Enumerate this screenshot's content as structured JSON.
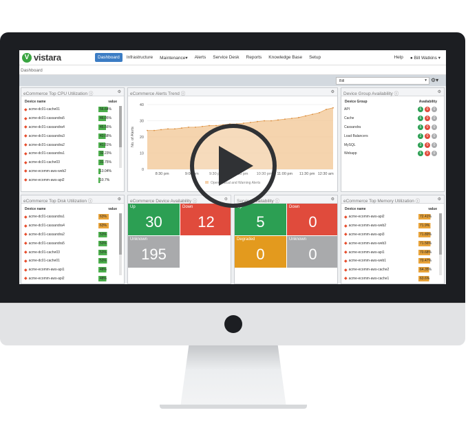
{
  "app": {
    "logo": "vistara",
    "logo_mark": "V"
  },
  "nav": {
    "items": [
      "Dashboard",
      "Infrastructure",
      "Maintenance",
      "Alerts",
      "Service Desk",
      "Reports",
      "Knowledge Base",
      "Setup"
    ],
    "maintenance_caret": "▾",
    "help": "Help",
    "user": "Bill Watkins"
  },
  "breadcrumb": "Dashboard",
  "toolbar": {
    "selected": "Bill"
  },
  "cpu": {
    "title": "eCommerce Top CPU Utilization",
    "col_device": "Device name",
    "col_value": "value",
    "rows": [
      {
        "name": "acme-dc01-cache01",
        "value": "56.64%",
        "pct": 56.64
      },
      {
        "name": "acme-dc01-cassandra5",
        "value": "46.05%",
        "pct": 46.05
      },
      {
        "name": "acme-dc01-cassandra4",
        "value": "45.56%",
        "pct": 45.56
      },
      {
        "name": "acme-dc01-cassandra3",
        "value": "43.68%",
        "pct": 43.68
      },
      {
        "name": "acme-dc01-cassandra2",
        "value": "41.81%",
        "pct": 41.81
      },
      {
        "name": "acme-dc01-cassandra1",
        "value": "32.23%",
        "pct": 32.23
      },
      {
        "name": "acme-dc01-cache03",
        "value": "31.75%",
        "pct": 31.75
      },
      {
        "name": "acme-ecomm-aws-web2",
        "value": "13.04%",
        "pct": 13.04
      },
      {
        "name": "acme-ecomm-aws-api2",
        "value": "10.7%",
        "pct": 10.7
      }
    ]
  },
  "trend": {
    "title": "eCommerce Alerts Trend",
    "chart_data": {
      "type": "area",
      "ylabel": "No. of Alerts",
      "ylim": [
        0,
        40
      ],
      "yticks": [
        "40",
        "30",
        "20",
        "10",
        "0"
      ],
      "xticks": [
        "8:30 pm",
        "9:00 pm",
        "9:30 pm",
        "10:00 pm",
        "10:30 pm",
        "11:00 pm",
        "11:30 pm",
        "12:30 am"
      ],
      "legend": "Open Critical and Warning Alerts",
      "values": [
        24,
        24,
        24.5,
        25,
        25,
        25.5,
        26,
        26,
        26.5,
        27,
        27,
        27.5,
        28,
        28,
        28.5,
        29,
        29.5,
        30,
        30,
        30.5,
        31,
        31.5,
        32,
        33,
        34,
        35,
        37,
        38
      ]
    }
  },
  "group": {
    "title": "Device Group Availability",
    "col_group": "Device Group",
    "col_avail": "Availability",
    "rows": [
      {
        "name": "API",
        "up": "6",
        "down": "0",
        "unk": "0"
      },
      {
        "name": "Cache",
        "up": "6",
        "down": "0",
        "unk": "0"
      },
      {
        "name": "Cassandra",
        "up": "5",
        "down": "0",
        "unk": "0"
      },
      {
        "name": "Load Balancers",
        "up": "2",
        "down": "0",
        "unk": "0"
      },
      {
        "name": "MySQL",
        "up": "3",
        "down": "0",
        "unk": "0"
      },
      {
        "name": "Webapp",
        "up": "6",
        "down": "0",
        "unk": "0"
      }
    ]
  },
  "disk": {
    "title": "eCommerce Top Disk Utilization",
    "col_device": "Device name",
    "col_value": "value",
    "rows": [
      {
        "name": "acme-dc01-cassandra1",
        "value": "63%",
        "pct": 63,
        "color": "#e8a33a"
      },
      {
        "name": "acme-dc01-cassandra4",
        "value": "63%",
        "pct": 63,
        "color": "#e8a33a"
      },
      {
        "name": "acme-dc01-cassandra2",
        "value": "53%",
        "pct": 53,
        "color": "#4cae4c"
      },
      {
        "name": "acme-dc01-cassandra5",
        "value": "53%",
        "pct": 53,
        "color": "#4cae4c"
      },
      {
        "name": "acme-dc01-cache03",
        "value": "53%",
        "pct": 53,
        "color": "#4cae4c"
      },
      {
        "name": "acme-dc01-cache01",
        "value": "53%",
        "pct": 53,
        "color": "#4cae4c"
      },
      {
        "name": "acme-ecomm-aws-api1",
        "value": "48%",
        "pct": 48,
        "color": "#4cae4c"
      },
      {
        "name": "acme-ecomm-aws-api2",
        "value": "48%",
        "pct": 48,
        "color": "#4cae4c"
      }
    ]
  },
  "device_avail": {
    "title": "eCommerce Device Availability",
    "up_label": "Up",
    "up": "30",
    "down_label": "Down",
    "down": "12",
    "unknown_label": "Unknown",
    "unknown": "195"
  },
  "service_avail": {
    "title": "Service Availability",
    "up_label": "Up",
    "up": "5",
    "down_label": "Down",
    "down": "0",
    "degraded_label": "Degraded",
    "degraded": "0",
    "unknown_label": "Unknown",
    "unknown": "0"
  },
  "memory": {
    "title": "eCommerce Top Memory Utilization",
    "col_device": "Device name",
    "col_value": "value",
    "rows": [
      {
        "name": "acme-ecomm-aws-api2",
        "value": "72.41%",
        "pct": 72.41
      },
      {
        "name": "acme-ecomm-aws-web2",
        "value": "71.9%",
        "pct": 71.9
      },
      {
        "name": "acme-ecomm-aws-api3",
        "value": "71.89%",
        "pct": 71.89
      },
      {
        "name": "acme-ecomm-aws-web3",
        "value": "71.56%",
        "pct": 71.56
      },
      {
        "name": "acme-ecomm-aws-api1",
        "value": "70.68%",
        "pct": 70.68
      },
      {
        "name": "acme-ecomm-aws-web1",
        "value": "70.47%",
        "pct": 70.47
      },
      {
        "name": "acme-ecomm-aws-cache2",
        "value": "64.35%",
        "pct": 64.35
      },
      {
        "name": "acme-ecomm-aws-cache1",
        "value": "63.6%",
        "pct": 63.6
      }
    ]
  },
  "colors": {
    "green": "#2c9f53",
    "red": "#e04b3c",
    "gray": "#a9aaac",
    "orange": "#e39a1e",
    "brand": "#3b7cc4",
    "area": "#f3c99a"
  }
}
